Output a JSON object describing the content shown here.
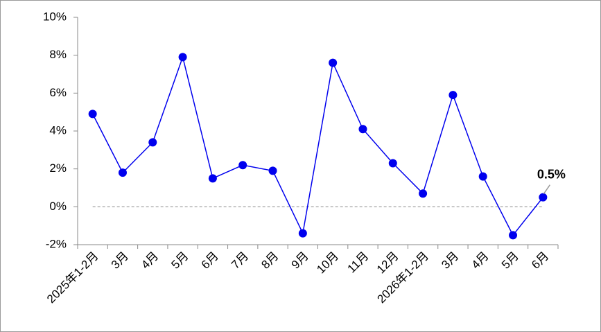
{
  "chart_data": {
    "type": "line",
    "categories": [
      "2025年1-2月",
      "3月",
      "4月",
      "5月",
      "6月",
      "7月",
      "8月",
      "9月",
      "10月",
      "11月",
      "12月",
      "2026年1-2月",
      "3月",
      "4月",
      "5月",
      "6月"
    ],
    "series": [
      {
        "color": "#0000ee",
        "values": [
          4.9,
          1.8,
          3.4,
          7.9,
          1.5,
          2.2,
          1.9,
          -1.4,
          7.6,
          4.1,
          2.3,
          0.7,
          5.9,
          1.6,
          -1.5,
          0.5
        ],
        "value_labels": [
          null,
          null,
          null,
          null,
          null,
          null,
          null,
          null,
          null,
          null,
          null,
          null,
          null,
          null,
          null,
          "0.5%"
        ]
      }
    ],
    "ylim": [
      -2,
      10
    ],
    "yticks": [
      {
        "value": -2,
        "label": "-2%"
      },
      {
        "value": 0,
        "label": "0%"
      },
      {
        "value": 2,
        "label": "2%"
      },
      {
        "value": 4,
        "label": "4%"
      },
      {
        "value": 6,
        "label": "6%"
      },
      {
        "value": 8,
        "label": "8%"
      },
      {
        "value": 10,
        "label": "10%"
      }
    ],
    "reference_line": 0
  }
}
